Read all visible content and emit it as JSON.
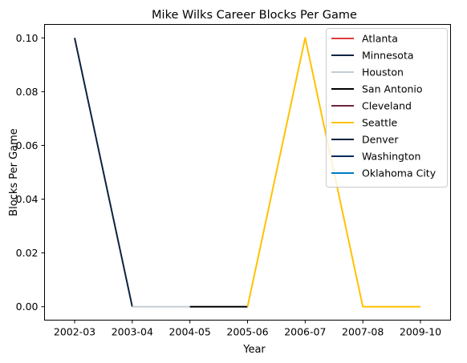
{
  "chart_data": {
    "type": "line",
    "title": "Mike Wilks  Career Blocks Per Game",
    "xlabel": "Year",
    "ylabel": "Blocks Per Game",
    "categories": [
      "2002-03",
      "2003-04",
      "2004-05",
      "2005-06",
      "2006-07",
      "2007-08",
      "2009-10"
    ],
    "ylim": [
      -0.005,
      0.105
    ],
    "yticks": [
      0.0,
      0.02,
      0.04,
      0.06,
      0.08,
      0.1
    ],
    "ytick_labels": [
      "0.00",
      "0.02",
      "0.04",
      "0.06",
      "0.08",
      "0.10"
    ],
    "grid": false,
    "legend_position": "top-right",
    "series": [
      {
        "name": "Atlanta",
        "color": "#E03A3E",
        "points": []
      },
      {
        "name": "Minnesota",
        "color": "#0C2340",
        "points": [
          [
            "2002-03",
            0.1
          ],
          [
            "2003-04",
            0.0
          ]
        ]
      },
      {
        "name": "Houston",
        "color": "#C4CED4",
        "points": [
          [
            "2003-04",
            0.0
          ],
          [
            "2004-05",
            0.0
          ]
        ]
      },
      {
        "name": "San Antonio",
        "color": "#000000",
        "points": [
          [
            "2004-05",
            0.0
          ],
          [
            "2005-06",
            0.0
          ]
        ]
      },
      {
        "name": "Cleveland",
        "color": "#6F263D",
        "points": []
      },
      {
        "name": "Seattle",
        "color": "#FFC200",
        "points": [
          [
            "2005-06",
            0.0
          ],
          [
            "2006-07",
            0.1
          ],
          [
            "2007-08",
            0.0
          ],
          [
            "2009-10",
            0.0
          ]
        ]
      },
      {
        "name": "Denver",
        "color": "#0E2240",
        "points": []
      },
      {
        "name": "Washington",
        "color": "#002B5C",
        "points": []
      },
      {
        "name": "Oklahoma City",
        "color": "#007AC1",
        "points": []
      }
    ]
  }
}
